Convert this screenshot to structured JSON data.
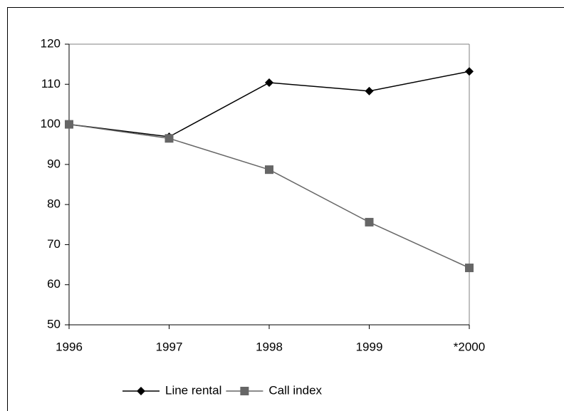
{
  "chart_data": {
    "type": "line",
    "categories": [
      "1996",
      "1997",
      "1998",
      "1999",
      "*2000"
    ],
    "series": [
      {
        "name": "Line rental",
        "color": "#000000",
        "marker": "diamond",
        "values": [
          100,
          96.9,
          110.4,
          108.3,
          113.2
        ]
      },
      {
        "name": "Call index",
        "color": "#666666",
        "marker": "square",
        "values": [
          100,
          96.5,
          88.7,
          75.6,
          64.2
        ]
      }
    ],
    "ylim": [
      50,
      120
    ],
    "yticks": [
      50,
      60,
      70,
      80,
      90,
      100,
      110,
      120
    ],
    "grid": false,
    "legend": "bottom"
  }
}
